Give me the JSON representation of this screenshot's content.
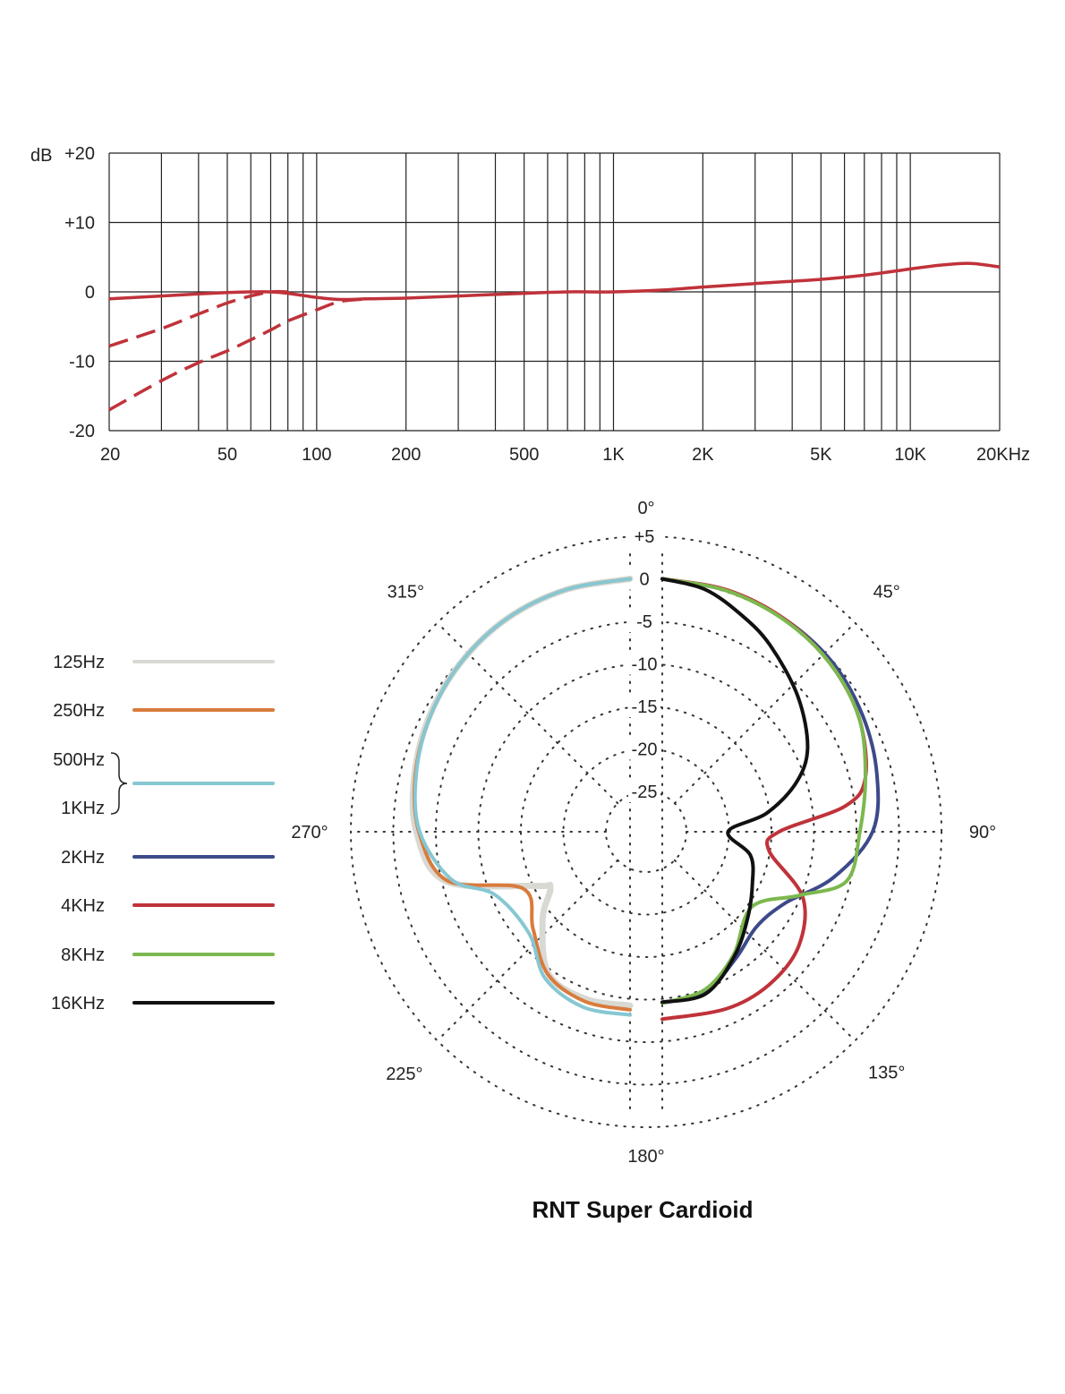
{
  "chart_data": [
    {
      "type": "line",
      "x_scale": "log",
      "xlim": [
        20,
        20000
      ],
      "ylim": [
        -20,
        20
      ],
      "ylabel": "dB",
      "grid": true,
      "y_ticks": [
        {
          "value": 20,
          "label": "+20"
        },
        {
          "value": 10,
          "label": "+10"
        },
        {
          "value": 0,
          "label": "0"
        },
        {
          "value": -10,
          "label": "-10"
        },
        {
          "value": -20,
          "label": "-20"
        }
      ],
      "x_gridlines": [
        20,
        30,
        40,
        50,
        60,
        70,
        80,
        90,
        100,
        200,
        300,
        400,
        500,
        600,
        700,
        800,
        900,
        1000,
        2000,
        3000,
        4000,
        5000,
        6000,
        7000,
        8000,
        9000,
        10000,
        20000
      ],
      "x_ticks": [
        {
          "value": 20,
          "label": "20"
        },
        {
          "value": 50,
          "label": "50"
        },
        {
          "value": 100,
          "label": "100"
        },
        {
          "value": 200,
          "label": "200"
        },
        {
          "value": 500,
          "label": "500"
        },
        {
          "value": 1000,
          "label": "1K"
        },
        {
          "value": 2000,
          "label": "2K"
        },
        {
          "value": 5000,
          "label": "5K"
        },
        {
          "value": 10000,
          "label": "10K"
        },
        {
          "value": 20000,
          "label": "20KHz"
        }
      ],
      "color": "#c0323a",
      "series": [
        {
          "style": "solid",
          "x": [
            20,
            30,
            40,
            50,
            60,
            70,
            80,
            100,
            120,
            150,
            200,
            300,
            500,
            700,
            1000,
            1500,
            2000,
            3000,
            5000,
            7000,
            10000,
            13000,
            16000,
            20000
          ],
          "y": [
            -1.0,
            -0.6,
            -0.3,
            -0.1,
            0,
            0,
            -0.2,
            -0.8,
            -1.1,
            -1.0,
            -0.9,
            -0.6,
            -0.2,
            0,
            0,
            0.3,
            0.7,
            1.2,
            1.8,
            2.4,
            3.3,
            3.9,
            4.1,
            3.6
          ]
        },
        {
          "style": "dashed",
          "x": [
            20,
            30,
            40,
            50,
            60,
            70,
            80
          ],
          "y": [
            -7.8,
            -5.3,
            -3.2,
            -1.6,
            -0.6,
            0,
            0
          ]
        },
        {
          "style": "dashed",
          "x": [
            20,
            30,
            40,
            50,
            60,
            70,
            80,
            100,
            120,
            150
          ],
          "y": [
            -17.0,
            -12.8,
            -10.2,
            -8.5,
            -6.9,
            -5.5,
            -4.2,
            -2.6,
            -1.4,
            -1.0
          ]
        }
      ]
    },
    {
      "type": "polar",
      "title": "RNT Super Cardioid",
      "r_scale": "dB",
      "rlim": [
        -25,
        5
      ],
      "r_ticks": [
        "+5",
        "0",
        "-5",
        "-10",
        "-15",
        "-20",
        "-25"
      ],
      "r_tick_values": [
        5,
        0,
        -5,
        -10,
        -15,
        -20,
        -25
      ],
      "angle_labels": [
        {
          "angle": 0,
          "label": "0°"
        },
        {
          "angle": 45,
          "label": "45°"
        },
        {
          "angle": 90,
          "label": "90°"
        },
        {
          "angle": 135,
          "label": "135°"
        },
        {
          "angle": 180,
          "label": "180°"
        },
        {
          "angle": 225,
          "label": "225°"
        },
        {
          "angle": 270,
          "label": "270°"
        },
        {
          "angle": 315,
          "label": "315°"
        }
      ],
      "legend_position": "left",
      "legend": [
        {
          "label": "125Hz",
          "color": "#d9d9d4"
        },
        {
          "label": "250Hz",
          "color": "#d97b3c"
        },
        {
          "label": "500Hz",
          "color": "#86c7d2"
        },
        {
          "label": "1KHz",
          "color": "#86c7d2"
        },
        {
          "label": "2KHz",
          "color": "#3c4a8a"
        },
        {
          "label": "4KHz",
          "color": "#c0323a"
        },
        {
          "label": "8KHz",
          "color": "#7cb84e"
        },
        {
          "label": "16KHz",
          "color": "#111111"
        }
      ],
      "series": [
        {
          "name": "125Hz",
          "color": "#d9d9d4",
          "side": "left",
          "angles": [
            0,
            15,
            30,
            45,
            60,
            75,
            90,
            105,
            120,
            125,
            135,
            150,
            165,
            180
          ],
          "db": [
            0,
            -0.3,
            -0.8,
            -1.6,
            -2.5,
            -3.5,
            -4.6,
            -7.3,
            -17.0,
            -18.3,
            -15.2,
            -10.5,
            -9.4,
            -9.3
          ]
        },
        {
          "name": "250Hz",
          "color": "#d97b3c",
          "side": "left",
          "angles": [
            0,
            15,
            30,
            45,
            60,
            75,
            90,
            105,
            118,
            135,
            150,
            165,
            180
          ],
          "db": [
            0,
            -0.3,
            -0.8,
            -1.6,
            -2.6,
            -3.6,
            -4.9,
            -7.5,
            -15.5,
            -13.6,
            -10.4,
            -9.1,
            -8.8
          ]
        },
        {
          "name": "500Hz / 1KHz",
          "color": "#86c7d2",
          "side": "left",
          "angles": [
            0,
            15,
            30,
            45,
            60,
            75,
            90,
            105,
            115,
            135,
            150,
            165,
            180
          ],
          "db": [
            0,
            -0.3,
            -0.8,
            -1.6,
            -2.6,
            -3.7,
            -5.0,
            -8.0,
            -12.2,
            -12.9,
            -9.8,
            -8.4,
            -8.2
          ]
        },
        {
          "name": "2KHz",
          "color": "#3c4a8a",
          "side": "right",
          "angles": [
            0,
            15,
            30,
            45,
            60,
            75,
            90,
            105,
            120,
            135,
            150,
            165,
            180
          ],
          "db": [
            0,
            -0.4,
            -0.9,
            -1.5,
            -2.5,
            -3.6,
            -5.0,
            -8.9,
            -13.0,
            -14.0,
            -12.5,
            -10.2,
            -9.6
          ]
        },
        {
          "name": "4KHz",
          "color": "#c0323a",
          "side": "right",
          "angles": [
            0,
            15,
            30,
            45,
            60,
            75,
            82,
            90,
            100,
            115,
            130,
            145,
            160,
            180
          ],
          "db": [
            0,
            -0.3,
            -0.9,
            -1.8,
            -3.0,
            -5.0,
            -8.0,
            -16.0,
            -17.0,
            -11.5,
            -8.8,
            -7.8,
            -7.6,
            -7.7
          ]
        },
        {
          "name": "8KHz",
          "color": "#7cb84e",
          "side": "right",
          "angles": [
            0,
            15,
            30,
            45,
            60,
            75,
            90,
            105,
            115,
            130,
            150,
            165,
            180
          ],
          "db": [
            0,
            -0.4,
            -1.0,
            -1.8,
            -3.0,
            -5.0,
            -6.5,
            -7.3,
            -12.0,
            -16.0,
            -13.0,
            -10.5,
            -9.6
          ]
        },
        {
          "name": "16KHz",
          "color": "#111111",
          "side": "right",
          "angles": [
            0,
            10,
            20,
            30,
            45,
            60,
            70,
            80,
            90,
            105,
            120,
            135,
            150,
            165,
            180
          ],
          "db": [
            0,
            -0.8,
            -2.6,
            -4.4,
            -7.2,
            -10.0,
            -13.0,
            -17.3,
            -22.0,
            -19.0,
            -17.5,
            -15.5,
            -12.8,
            -10.0,
            -9.7
          ]
        }
      ]
    }
  ]
}
